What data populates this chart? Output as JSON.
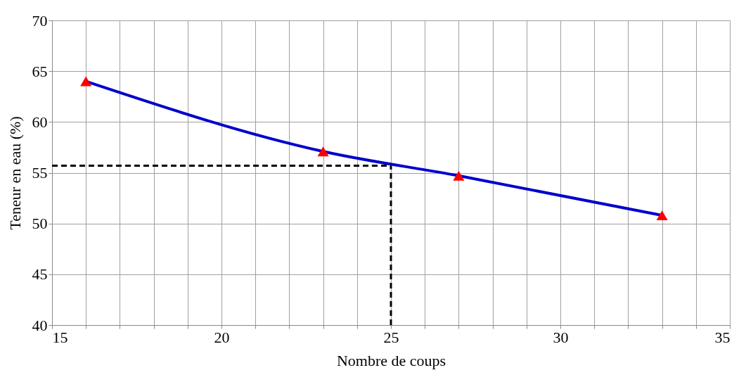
{
  "chart_data": {
    "type": "line",
    "xlabel": "Nombre de coups",
    "ylabel": "Teneur en eau (%)",
    "x": [
      16,
      23,
      27,
      33
    ],
    "series": [
      {
        "color": "#0000cc",
        "values": [
          64.0,
          57.1,
          54.7,
          50.8
        ],
        "marker": "none"
      },
      {
        "type": "scatter",
        "color": "#ff0000",
        "values": [
          64.0,
          57.1,
          54.7,
          50.8
        ],
        "marker": "triangle"
      }
    ],
    "xlim": [
      15,
      35
    ],
    "xticks": [
      15,
      {
        "value": 16,
        "label": null
      },
      {
        "value": 17,
        "label": null
      },
      {
        "value": 18,
        "label": null
      },
      {
        "value": 19,
        "label": null
      },
      20,
      {
        "value": 21,
        "label": null
      },
      {
        "value": 22,
        "label": null
      },
      {
        "value": 23,
        "label": null
      },
      {
        "value": 24,
        "label": null
      },
      25,
      {
        "value": 26,
        "label": null
      },
      {
        "value": 27,
        "label": null
      },
      {
        "value": 28,
        "label": null
      },
      {
        "value": 29,
        "label": null
      },
      30,
      {
        "value": 31,
        "label": null
      },
      {
        "value": 32,
        "label": null
      },
      {
        "value": 33,
        "label": null
      },
      {
        "value": 34,
        "label": null
      },
      35
    ],
    "ylim": [
      40,
      70
    ],
    "yticks": [
      40,
      45,
      50,
      55,
      60,
      65,
      70
    ],
    "ref_lines": [
      {
        "axis": "y",
        "value": 55.7,
        "color": "#000000",
        "line_style": "dashed"
      },
      {
        "axis": "x",
        "value": 25,
        "color": "#000000",
        "line_style": "dashed"
      }
    ],
    "grid": true
  }
}
